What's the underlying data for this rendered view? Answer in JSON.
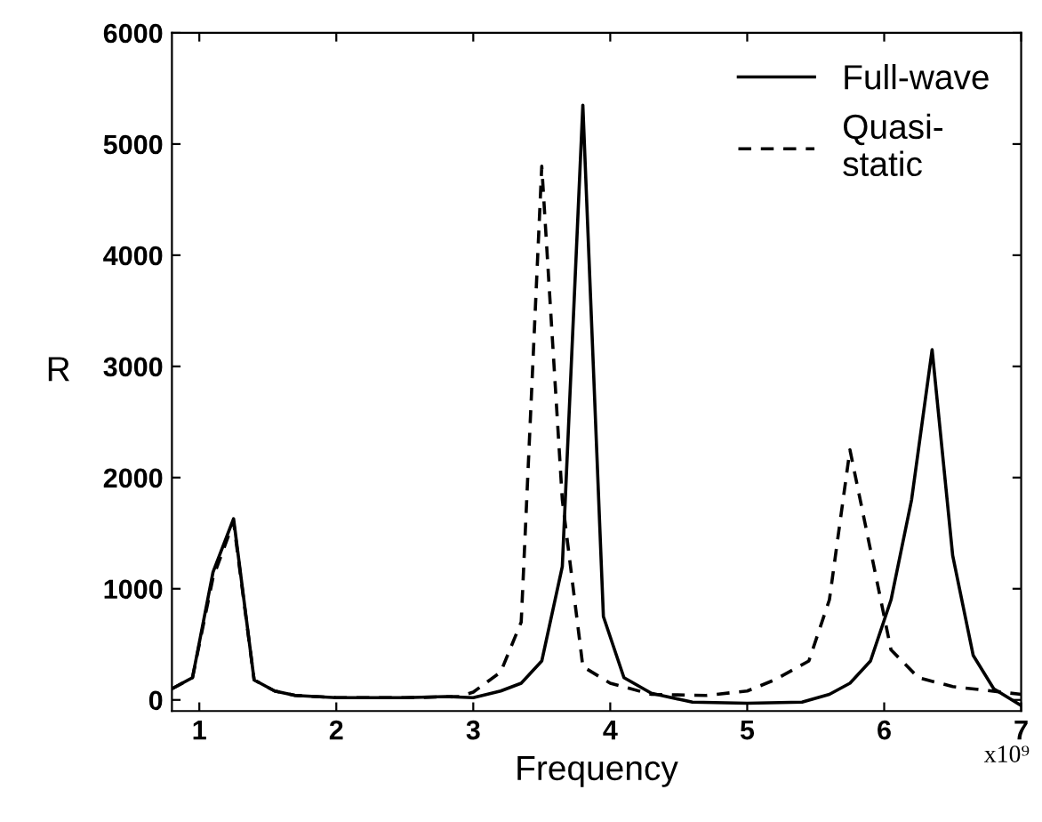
{
  "chart_data": {
    "type": "line",
    "xlabel": "Frequency",
    "ylabel": "R",
    "xlim": [
      0.8,
      7
    ],
    "xticks": [
      1,
      2,
      3,
      4,
      5,
      6,
      7
    ],
    "ylim": [
      -100,
      6000
    ],
    "yticks": [
      0,
      1000,
      2000,
      3000,
      4000,
      5000,
      6000
    ],
    "grid": false,
    "legend": "top right",
    "marker": "none",
    "annotations": [
      "x10⁹"
    ],
    "series": [
      {
        "name": "Full-wave",
        "color": "#000000",
        "line_style": "solid",
        "x": [
          0.8,
          0.95,
          1.1,
          1.25,
          1.4,
          1.55,
          1.7,
          2.0,
          2.5,
          2.8,
          3.0,
          3.2,
          3.35,
          3.5,
          3.65,
          3.8,
          3.95,
          4.1,
          4.3,
          4.6,
          5.0,
          5.4,
          5.6,
          5.75,
          5.9,
          6.05,
          6.2,
          6.35,
          6.5,
          6.65,
          6.8,
          7.0
        ],
        "values": [
          100,
          200,
          1150,
          1630,
          180,
          80,
          40,
          20,
          20,
          30,
          20,
          80,
          150,
          350,
          1200,
          5350,
          750,
          200,
          60,
          -20,
          -30,
          -20,
          50,
          150,
          350,
          900,
          1800,
          3150,
          1300,
          400,
          100,
          -50
        ]
      },
      {
        "name": "Quasi-\nstatic",
        "color": "#000000",
        "line_style": "dashed",
        "x": [
          0.8,
          0.95,
          1.1,
          1.25,
          1.4,
          1.55,
          1.7,
          2.0,
          2.5,
          2.9,
          3.0,
          3.2,
          3.35,
          3.5,
          3.65,
          3.8,
          4.0,
          4.3,
          4.7,
          5.0,
          5.2,
          5.45,
          5.6,
          5.75,
          5.9,
          6.05,
          6.25,
          6.5,
          7.0
        ],
        "values": [
          100,
          200,
          1100,
          1600,
          180,
          80,
          40,
          20,
          20,
          30,
          70,
          250,
          700,
          4800,
          1800,
          300,
          150,
          50,
          40,
          80,
          180,
          350,
          900,
          2250,
          1350,
          450,
          200,
          120,
          50
        ]
      }
    ]
  }
}
